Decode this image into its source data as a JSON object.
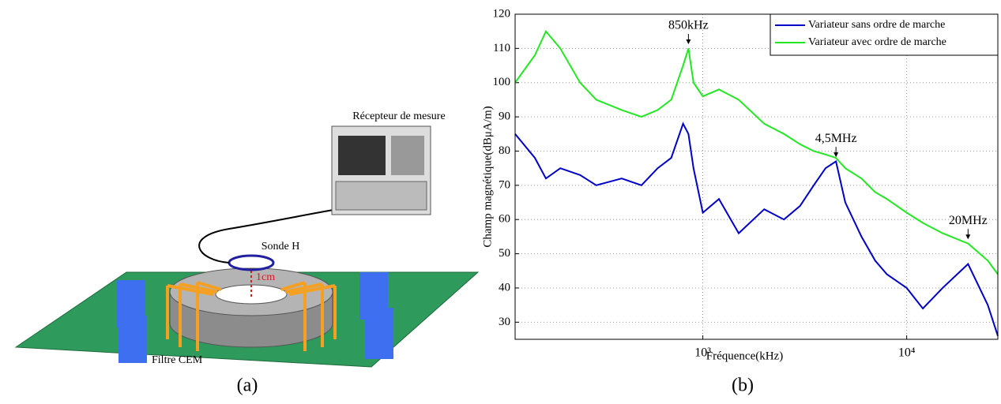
{
  "diagram": {
    "receiver_label": "Récepteur de mesure",
    "probe_label": "Sonde H",
    "distance_label": "1cm",
    "filter_label": "Filtre CEM",
    "caption": "(a)"
  },
  "chart_data": {
    "type": "line",
    "caption": "(b)",
    "xlabel": "Fréquence(kHz)",
    "ylabel": "Champ magnétique(dBμA/m)",
    "x": [
      120,
      150,
      170,
      200,
      250,
      300,
      400,
      500,
      600,
      700,
      800,
      850,
      900,
      1000,
      1200,
      1500,
      2000,
      2500,
      3000,
      3500,
      4000,
      4500,
      5000,
      6000,
      7000,
      8000,
      10000,
      12000,
      15000,
      20000,
      25000,
      28000
    ],
    "series": [
      {
        "name": "Variateur sans ordre de marche",
        "color": "#0000c8",
        "values": [
          85,
          78,
          72,
          75,
          73,
          70,
          72,
          70,
          75,
          78,
          88,
          85,
          75,
          62,
          66,
          56,
          63,
          60,
          64,
          70,
          75,
          77,
          65,
          55,
          48,
          44,
          40,
          34,
          40,
          47,
          35,
          26
        ]
      },
      {
        "name": "Variateur avec ordre de marche",
        "color": "#22e822",
        "values": [
          100,
          108,
          115,
          110,
          100,
          95,
          92,
          90,
          92,
          95,
          105,
          110,
          100,
          96,
          98,
          95,
          88,
          85,
          82,
          80,
          79,
          78,
          75,
          72,
          68,
          66,
          62,
          59,
          56,
          53,
          48,
          44
        ]
      }
    ],
    "xscale": "log",
    "xlim": [
      120,
      28000
    ],
    "ylim": [
      25,
      120
    ],
    "xticks": [
      {
        "value": 1000,
        "label": "10³"
      },
      {
        "value": 10000,
        "label": "10⁴"
      }
    ],
    "yticks": [
      30,
      40,
      50,
      60,
      70,
      80,
      90,
      100,
      110,
      120
    ],
    "grid": true,
    "legend": "top-right",
    "annotations": [
      {
        "text": "850kHz",
        "x": 850,
        "y": 111
      },
      {
        "text": "4,5MHz",
        "x": 4500,
        "y": 78
      },
      {
        "text": "20MHz",
        "x": 20000,
        "y": 54
      }
    ]
  }
}
